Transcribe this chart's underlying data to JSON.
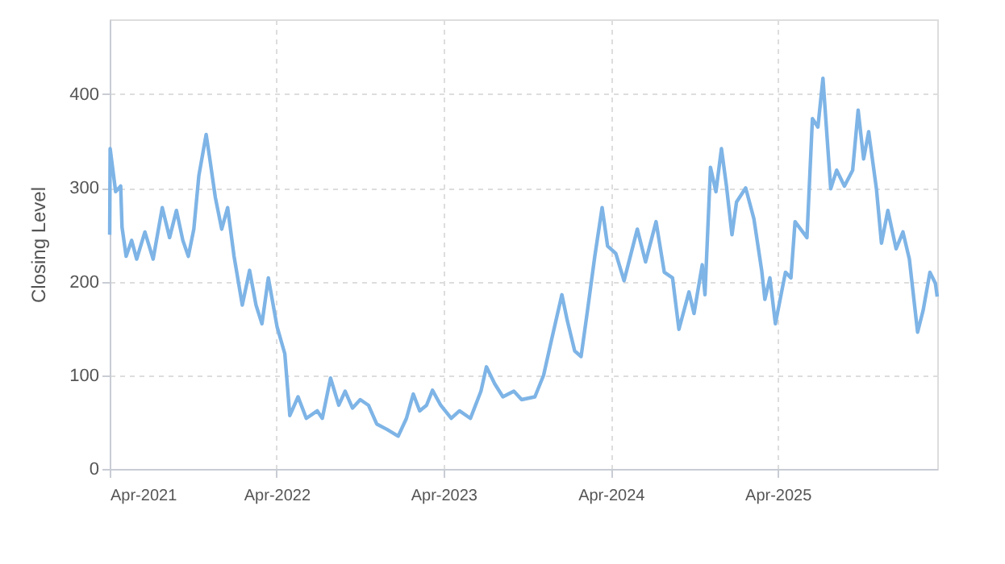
{
  "chart_data": {
    "type": "line",
    "ylabel": "Closing Level",
    "xlim": [
      "2021-04-01",
      "2026-03-16"
    ],
    "ylim": [
      0,
      480
    ],
    "xticks": [
      {
        "value": "2021-04-01",
        "label": "Apr-2021"
      },
      {
        "value": "2022-04-01",
        "label": "Apr-2022"
      },
      {
        "value": "2023-04-01",
        "label": "Apr-2023"
      },
      {
        "value": "2024-04-01",
        "label": "Apr-2024"
      },
      {
        "value": "2025-04-01",
        "label": "Apr-2025"
      }
    ],
    "yticks": [
      0,
      100,
      200,
      300,
      400
    ],
    "grid": true,
    "line_style": "solid",
    "marker": "none",
    "series": [
      {
        "color": "#7eb4e6",
        "x": [
          "2021-04-01",
          "2021-04-02",
          "2021-04-14",
          "2021-04-25",
          "2021-04-28",
          "2021-05-07",
          "2021-05-19",
          "2021-05-30",
          "2021-06-17",
          "2021-07-05",
          "2021-07-25",
          "2021-08-10",
          "2021-08-25",
          "2021-09-08",
          "2021-09-20",
          "2021-10-02",
          "2021-10-13",
          "2021-10-29",
          "2021-11-06",
          "2021-11-18",
          "2021-12-02",
          "2021-12-15",
          "2021-12-29",
          "2022-01-16",
          "2022-02-01",
          "2022-02-15",
          "2022-02-28",
          "2022-03-14",
          "2022-04-02",
          "2022-04-19",
          "2022-04-30",
          "2022-05-18",
          "2022-06-05",
          "2022-06-29",
          "2022-07-10",
          "2022-07-28",
          "2022-08-15",
          "2022-08-29",
          "2022-09-14",
          "2022-10-01",
          "2022-10-19",
          "2022-11-06",
          "2022-11-29",
          "2022-12-23",
          "2023-01-10",
          "2023-01-25",
          "2023-02-08",
          "2023-02-23",
          "2023-03-08",
          "2023-03-26",
          "2023-04-18",
          "2023-05-06",
          "2023-05-30",
          "2023-06-22",
          "2023-07-04",
          "2023-07-22",
          "2023-08-09",
          "2023-09-02",
          "2023-09-19",
          "2023-10-18",
          "2023-11-06",
          "2023-11-23",
          "2023-12-16",
          "2023-12-28",
          "2024-01-13",
          "2024-01-27",
          "2024-02-10",
          "2024-02-26",
          "2024-03-13",
          "2024-03-25",
          "2024-04-12",
          "2024-04-30",
          "2024-05-29",
          "2024-06-16",
          "2024-07-09",
          "2024-07-27",
          "2024-08-14",
          "2024-08-28",
          "2024-09-19",
          "2024-09-30",
          "2024-10-18",
          "2024-10-24",
          "2024-11-05",
          "2024-11-17",
          "2024-11-29",
          "2024-12-10",
          "2024-12-22",
          "2025-01-01",
          "2025-01-21",
          "2025-02-08",
          "2025-02-25",
          "2025-03-04",
          "2025-03-15",
          "2025-03-27",
          "2025-04-18",
          "2025-04-30",
          "2025-05-09",
          "2025-06-04",
          "2025-06-16",
          "2025-06-28",
          "2025-07-09",
          "2025-07-26",
          "2025-08-08",
          "2025-08-25",
          "2025-09-12",
          "2025-09-24",
          "2025-10-06",
          "2025-10-17",
          "2025-11-03",
          "2025-11-14",
          "2025-11-28",
          "2025-12-16",
          "2025-12-31",
          "2026-01-14",
          "2026-02-01",
          "2026-02-13",
          "2026-02-28",
          "2026-03-12",
          "2026-03-16"
        ],
        "values": [
          250,
          342,
          296,
          302,
          258,
          227,
          244,
          224,
          253,
          224,
          279,
          247,
          276,
          244,
          227,
          256,
          313,
          357,
          331,
          290,
          256,
          279,
          227,
          175,
          212,
          175,
          155,
          204,
          152,
          123,
          57,
          77,
          54,
          62,
          54,
          97,
          68,
          83,
          65,
          74,
          68,
          48,
          42,
          35,
          54,
          80,
          62,
          68,
          84,
          68,
          54,
          62,
          54,
          83,
          109,
          91,
          77,
          83,
          74,
          77,
          100,
          137,
          186,
          158,
          126,
          120,
          169,
          227,
          279,
          238,
          230,
          201,
          256,
          221,
          264,
          210,
          204,
          149,
          189,
          166,
          218,
          186,
          322,
          296,
          342,
          302,
          250,
          285,
          300,
          267,
          212,
          181,
          204,
          155,
          210,
          204,
          264,
          247,
          374,
          365,
          417,
          299,
          319,
          302,
          319,
          383,
          331,
          360,
          299,
          241,
          276,
          235,
          253,
          224,
          146,
          169,
          210,
          198,
          184
        ]
      }
    ]
  }
}
